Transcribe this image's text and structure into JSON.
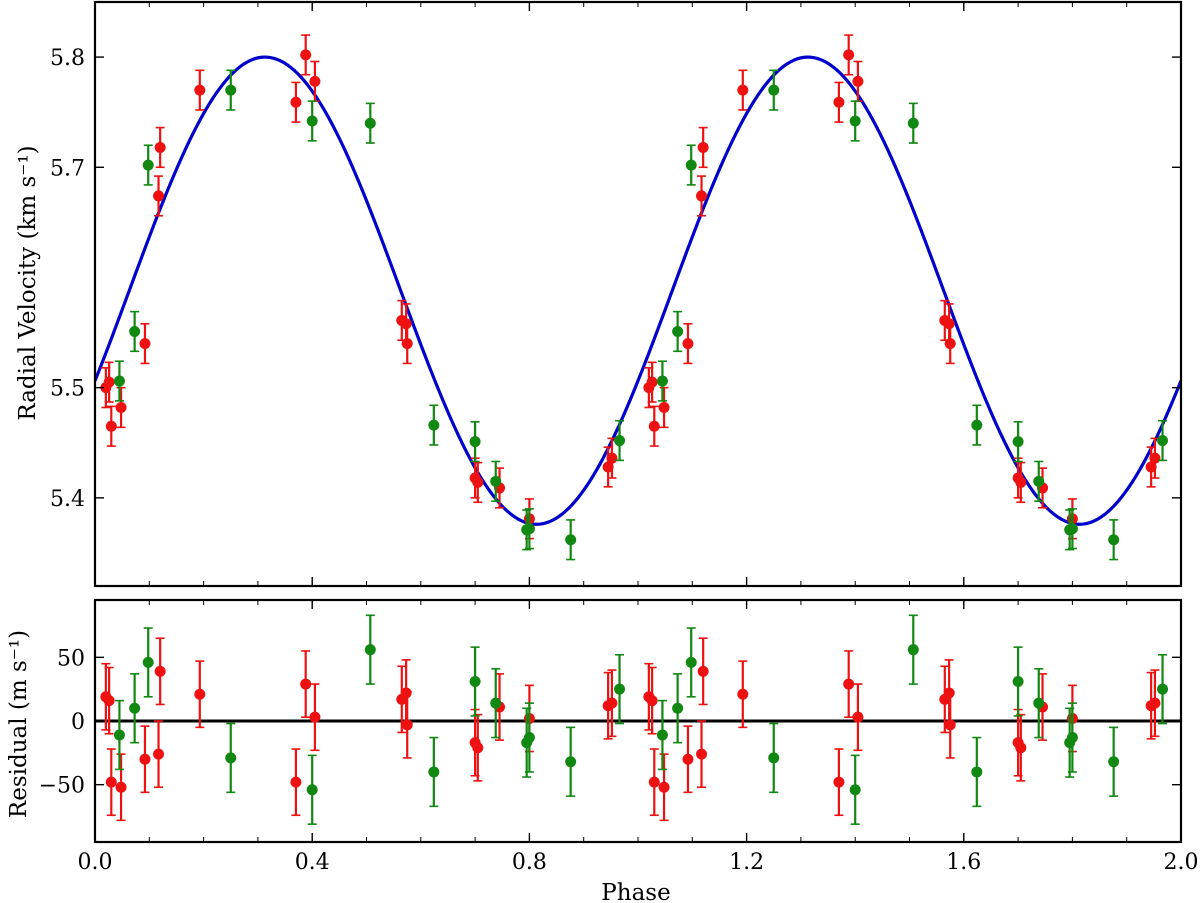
{
  "chart_data": [
    {
      "type": "scatter",
      "panel": "top",
      "xlabel": "",
      "ylabel": "Radial Velocity (km s⁻¹)",
      "xlim": [
        0.0,
        2.0
      ],
      "ylim": [
        5.32,
        5.85
      ],
      "x_ticks": [
        "0.0",
        "0.4",
        "0.8",
        "1.2",
        "1.6",
        "2.0"
      ],
      "x_tick_values": [
        0.0,
        0.4,
        0.8,
        1.2,
        1.6,
        2.0
      ],
      "y_ticks": [
        "5.4",
        "5.5",
        "5.7",
        "5.8"
      ],
      "y_tick_values": [
        5.4,
        5.5,
        5.7,
        5.8
      ],
      "grid": false,
      "model": {
        "type": "line",
        "color": "#0000cc",
        "function": "sinusoid",
        "mean": 5.588,
        "amplitude": 0.212,
        "phase_offset": 0.063,
        "period": 1.0
      },
      "series": [
        {
          "color": "#ee1111",
          "x": [
            0.02,
            0.026,
            0.03,
            0.048,
            0.092,
            0.117,
            0.12,
            0.193,
            0.37,
            0.388,
            0.405,
            0.565,
            0.573,
            0.575,
            0.7,
            0.705,
            0.745,
            0.8,
            0.945,
            0.952,
            1.02,
            1.026,
            1.03,
            1.048,
            1.092,
            1.117,
            1.12,
            1.193,
            1.37,
            1.388,
            1.405,
            1.565,
            1.573,
            1.575,
            1.7,
            1.705,
            1.745,
            1.8,
            1.945,
            1.952
          ],
          "y": [
            5.5,
            5.505,
            5.465,
            5.482,
            5.54,
            5.674,
            5.718,
            5.77,
            5.759,
            5.802,
            5.778,
            5.561,
            5.558,
            5.54,
            5.418,
            5.414,
            5.409,
            5.381,
            5.428,
            5.436,
            5.5,
            5.505,
            5.465,
            5.482,
            5.54,
            5.674,
            5.718,
            5.77,
            5.759,
            5.802,
            5.778,
            5.561,
            5.558,
            5.54,
            5.418,
            5.414,
            5.409,
            5.381,
            5.428,
            5.436
          ],
          "err": 0.018
        },
        {
          "color": "#118811",
          "x": [
            0.045,
            0.073,
            0.098,
            0.25,
            0.4,
            0.507,
            0.624,
            0.7,
            0.738,
            0.795,
            0.8,
            0.876,
            0.966,
            1.045,
            1.073,
            1.098,
            1.25,
            1.4,
            1.507,
            1.624,
            1.7,
            1.738,
            1.795,
            1.8,
            1.876,
            1.966
          ],
          "y": [
            5.506,
            5.551,
            5.702,
            5.77,
            5.742,
            5.74,
            5.466,
            5.451,
            5.415,
            5.371,
            5.372,
            5.362,
            5.452,
            5.506,
            5.551,
            5.702,
            5.77,
            5.742,
            5.74,
            5.466,
            5.451,
            5.415,
            5.371,
            5.372,
            5.362,
            5.452
          ],
          "err": 0.018
        }
      ]
    },
    {
      "type": "scatter",
      "panel": "bottom",
      "xlabel": "Phase",
      "ylabel": "Residual (m s⁻¹)",
      "xlim": [
        0.0,
        2.0
      ],
      "ylim": [
        -95,
        95
      ],
      "x_ticks": [
        "0.0",
        "0.4",
        "0.8",
        "1.2",
        "1.6",
        "2.0"
      ],
      "x_tick_values": [
        0.0,
        0.4,
        0.8,
        1.2,
        1.6,
        2.0
      ],
      "y_ticks": [
        "−50",
        "0",
        "50"
      ],
      "y_tick_values": [
        -50,
        0,
        50
      ],
      "grid": false,
      "reference_line": {
        "y": 0,
        "color": "#000000"
      },
      "series": [
        {
          "color": "#ee1111",
          "x": [
            0.02,
            0.026,
            0.03,
            0.048,
            0.092,
            0.117,
            0.12,
            0.193,
            0.37,
            0.388,
            0.405,
            0.565,
            0.573,
            0.575,
            0.7,
            0.705,
            0.745,
            0.8,
            0.945,
            0.952,
            1.02,
            1.026,
            1.03,
            1.048,
            1.092,
            1.117,
            1.12,
            1.193,
            1.37,
            1.388,
            1.405,
            1.565,
            1.573,
            1.575,
            1.7,
            1.705,
            1.745,
            1.8,
            1.945,
            1.952
          ],
          "y": [
            19,
            16,
            -48,
            -52,
            -30,
            -26,
            39,
            21,
            -48,
            29,
            3,
            17,
            22,
            -3,
            -17,
            -21,
            11,
            2,
            12,
            14,
            19,
            16,
            -48,
            -52,
            -30,
            -26,
            39,
            21,
            -48,
            29,
            3,
            17,
            22,
            -3,
            -17,
            -21,
            11,
            2,
            12,
            14
          ],
          "err": 26
        },
        {
          "color": "#118811",
          "x": [
            0.045,
            0.073,
            0.098,
            0.25,
            0.4,
            0.507,
            0.624,
            0.7,
            0.738,
            0.795,
            0.8,
            0.876,
            0.966,
            1.045,
            1.073,
            1.098,
            1.25,
            1.4,
            1.507,
            1.624,
            1.7,
            1.738,
            1.795,
            1.8,
            1.876,
            1.966
          ],
          "y": [
            -11,
            10,
            46,
            -29,
            -54,
            56,
            -40,
            31,
            14,
            -17,
            -13,
            -32,
            25,
            -11,
            10,
            46,
            -29,
            -54,
            56,
            -40,
            31,
            14,
            -17,
            -13,
            -32,
            25
          ],
          "err": 27
        }
      ]
    }
  ]
}
